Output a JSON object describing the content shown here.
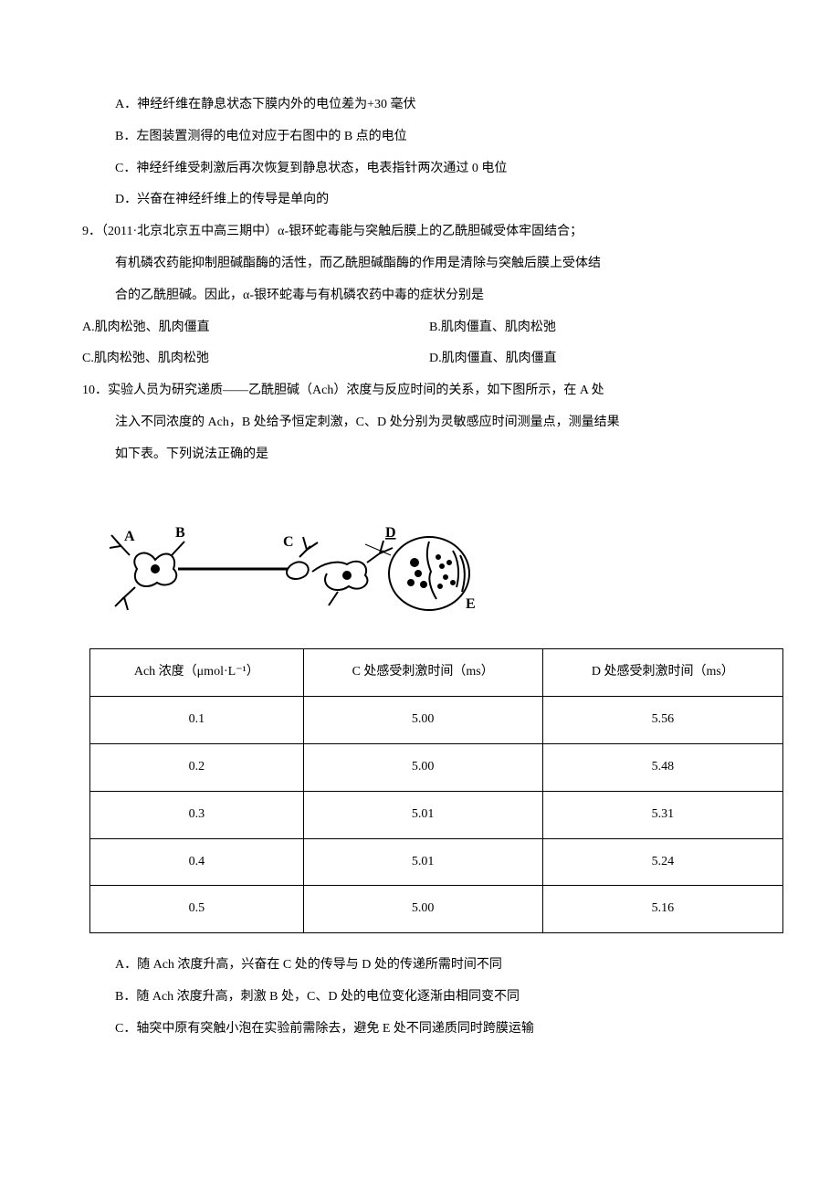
{
  "q8": {
    "A": "A．神经纤维在静息状态下膜内外的电位差为+30 毫伏",
    "B": "B．左图装置测得的电位对应于右图中的 B 点的电位",
    "C": "C．神经纤维受刺激后再次恢复到静息状态，电表指针两次通过 0 电位",
    "D": "D．兴奋在神经纤维上的传导是单向的"
  },
  "q9": {
    "num": "9．（2011·北京北京五中高三期中）α-银环蛇毒能与突触后膜上的乙酰胆碱受体牢固结合；",
    "l2": "有机磷农药能抑制胆碱酯酶的活性，而乙酰胆碱酯酶的作用是清除与突触后膜上受体结",
    "l3": "合的乙酰胆碱。因此，α-银环蛇毒与有机磷农药中毒的症状分别是",
    "A": "A.肌肉松弛、肌肉僵直",
    "B": "B.肌肉僵直、肌肉松弛",
    "C": "C.肌肉松弛、肌肉松弛",
    "D": "D.肌肉僵直、肌肉僵直"
  },
  "q10": {
    "num": "10．实验人员为研究递质——乙酰胆碱（Ach）浓度与反应时间的关系，如下图所示，在 A 处",
    "l2": "注入不同浓度的 Ach，B 处给予恒定刺激，C、D 处分别为灵敏感应时间测量点，测量结果",
    "l3": "如下表。下列说法正确的是",
    "A": "A．随 Ach 浓度升高，兴奋在 C 处的传导与 D 处的传递所需时间不同",
    "B": "B．随 Ach 浓度升高，刺激 B 处，C、D 处的电位变化逐渐由相同变不同",
    "C": "C．轴突中原有突触小泡在实验前需除去，避免 E 处不同递质同时跨膜运输"
  },
  "table": {
    "h1": "Ach 浓度（μmol·L⁻¹）",
    "h2": "C 处感受刺激时间（ms）",
    "h3": "D 处感受刺激时间（ms）",
    "rows": [
      [
        "0.1",
        "5.00",
        "5.56"
      ],
      [
        "0.2",
        "5.00",
        "5.48"
      ],
      [
        "0.3",
        "5.01",
        "5.31"
      ],
      [
        "0.4",
        "5.01",
        "5.24"
      ],
      [
        "0.5",
        "5.00",
        "5.16"
      ]
    ]
  },
  "diagram": {
    "stroke": "#000000",
    "labels": {
      "A": "A",
      "B": "B",
      "C": "C",
      "D": "D",
      "E": "E"
    }
  }
}
